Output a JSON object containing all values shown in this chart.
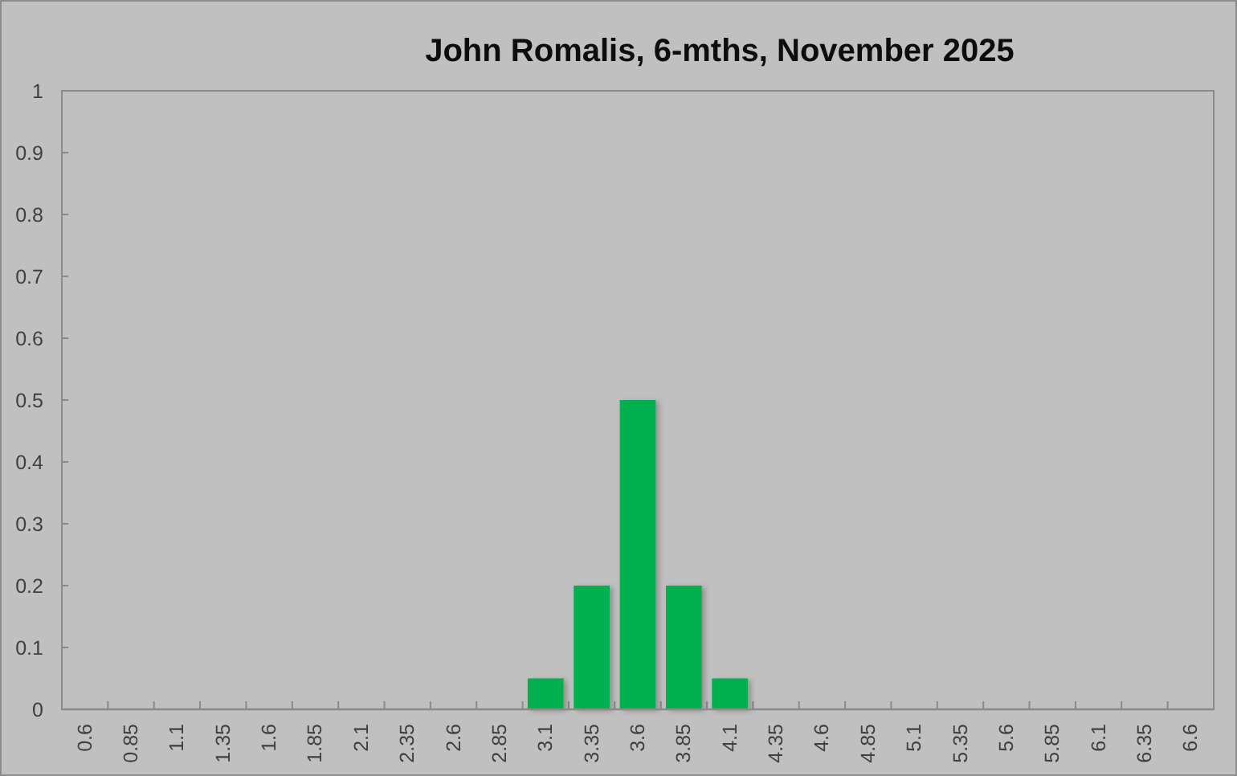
{
  "chart_data": {
    "type": "bar",
    "title": "John Romalis, 6-mths, November 2025",
    "categories": [
      "0.6",
      "0.85",
      "1.1",
      "1.35",
      "1.6",
      "1.85",
      "2.1",
      "2.35",
      "2.6",
      "2.85",
      "3.1",
      "3.35",
      "3.6",
      "3.85",
      "4.1",
      "4.35",
      "4.6",
      "4.85",
      "5.1",
      "5.35",
      "5.6",
      "5.85",
      "6.1",
      "6.35",
      "6.6"
    ],
    "values": [
      0,
      0,
      0,
      0,
      0,
      0,
      0,
      0,
      0,
      0,
      0.05,
      0.2,
      0.5,
      0.2,
      0.05,
      0,
      0,
      0,
      0,
      0,
      0,
      0,
      0,
      0,
      0
    ],
    "color": "#00b050",
    "ylim": [
      0,
      1
    ],
    "yticks": [
      0,
      0.1,
      0.2,
      0.3,
      0.4,
      0.5,
      0.6,
      0.7,
      0.8,
      0.9,
      1
    ]
  }
}
